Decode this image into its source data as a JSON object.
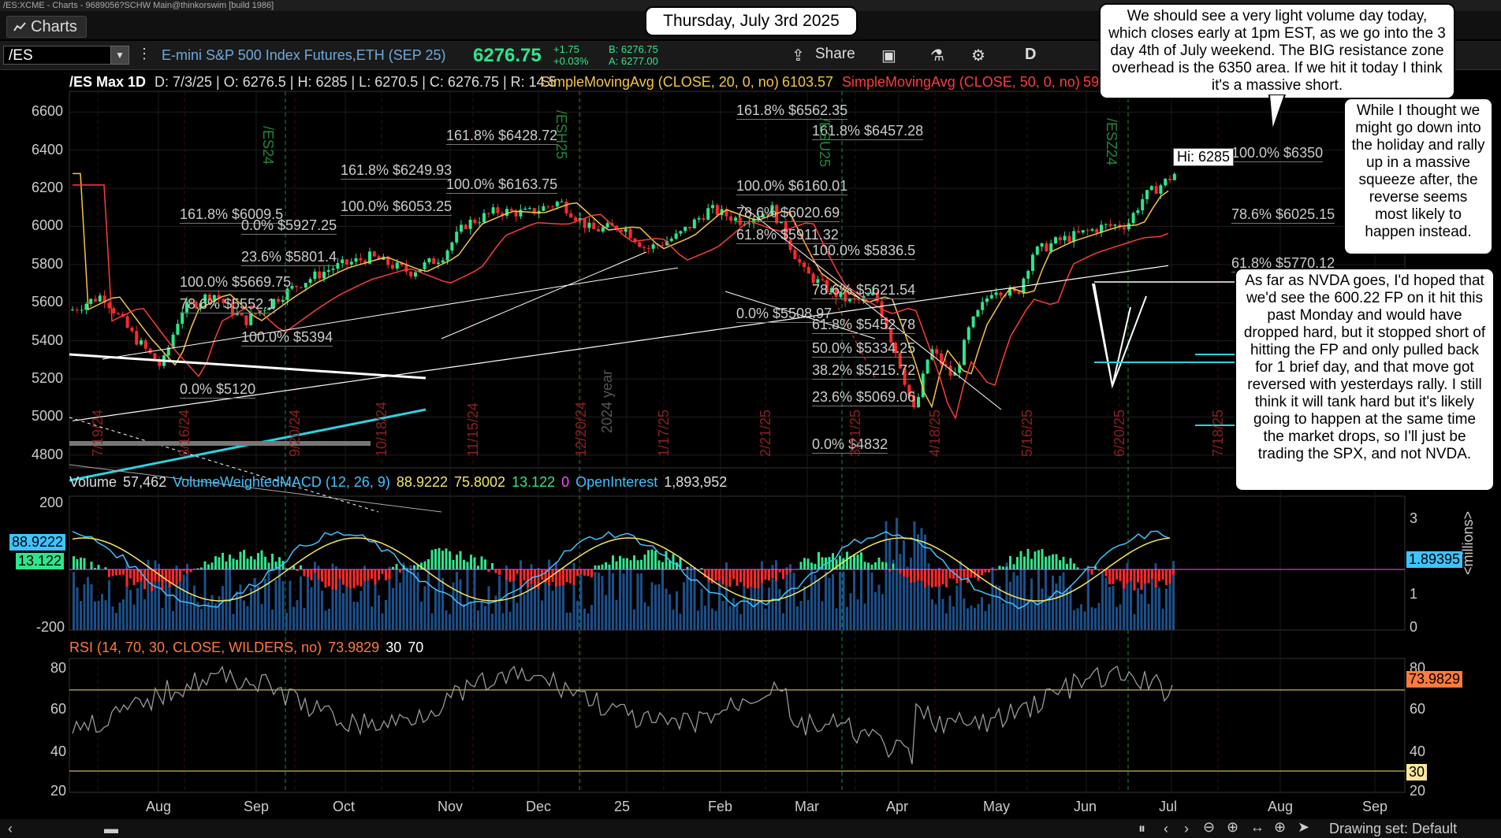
{
  "window_title": "/ES:XCME - Charts - 9689056?SCHW Main@thinkorswim [build 1986]",
  "tab": {
    "label": "Charts"
  },
  "toolbar": {
    "symbol": "/ES",
    "instrument": "E-mini S&P 500 Index Futures,ETH (SEP 25)",
    "last_price": "6276.75",
    "change_abs": "+1.75",
    "change_pct": "+0.03%",
    "bid": "B: 6276.75",
    "ask": "A: 6277.00",
    "share_label": "Share",
    "period_label": "D"
  },
  "header": {
    "symbol_info": "/ES Max 1D",
    "ohlc": [
      "D: 7/3/25",
      "O: 6276.5",
      "H: 6285",
      "L: 6270.5",
      "C: 6276.75",
      "R: 14.5"
    ],
    "sma20_label": "SimpleMovingAvg (CLOSE, 20, 0, no)",
    "sma20_value": "6103.57",
    "sma50_label": "SimpleMovingAvg (CLOSE, 50, 0, no)",
    "sma50_value": "59"
  },
  "y_axis_price": [
    "6600",
    "6400",
    "6200",
    "6000",
    "5800",
    "5600",
    "5400",
    "5200",
    "5000",
    "4800"
  ],
  "x_axis_months": [
    "Aug",
    "Sep",
    "Oct",
    "Nov",
    "Dec",
    "25",
    "Feb",
    "Mar",
    "Apr",
    "May",
    "Jun",
    "Jul",
    "Aug",
    "Sep"
  ],
  "fib_labels": [
    "161.8% $6562.35",
    "161.8% $6457.28",
    "161.8% $6428.72",
    "161.8% $6249.93",
    "100.0% $6163.75",
    "100.0% $6160.01",
    "100.0% $6053.25",
    "161.8% $6009.5",
    "78.6% $6020.69",
    "0.0% $5927.25",
    "61.8% $5911.32",
    "100.0% $5836.5",
    "23.6% $5801.4",
    "100.0% $5669.75",
    "78.6% $5621.54",
    "78.6% $5552.1",
    "0.0% $5508.97",
    "61.8% $5452.78",
    "100.0% $5394",
    "50.0% $5334.25",
    "38.2% $5215.72",
    "0.0% $5120",
    "23.6% $5069.06",
    "0.0% $4832",
    "100.0% $6350",
    "78.6% $6025.15",
    "61.8% $5770.12"
  ],
  "hi_marker": "Hi: 6285",
  "contract_labels": [
    "/ES24",
    "/ESH25",
    "/ESU25",
    "/ESZ24",
    "/ESM25"
  ],
  "date_marks": [
    "7/19/24",
    "8/16/24",
    "9/20/24",
    "10/18/24",
    "11/15/24",
    "12/20/24",
    "1/17/25",
    "2/21/25",
    "3/21/25",
    "4/18/25",
    "5/16/25",
    "6/20/25",
    "7/18/25"
  ],
  "year_label": "2024 year",
  "lower": {
    "volume_label": "Volume",
    "volume_value": "57,462",
    "macd_label": "VolumeWeightedMACD (12, 26, 9)",
    "macd_v1": "88.9222",
    "macd_v2": "75.8002",
    "macd_v3": "13.122",
    "macd_v4": "0",
    "oi_label": "OpenInterest",
    "oi_value": "1,893,952",
    "macd_axis": [
      "200",
      "-200"
    ],
    "vol_axis": [
      "3",
      "1",
      "0"
    ],
    "vol_unit": "<millions>",
    "oi_tag": "1.89395",
    "macd_tag1": "88.9222",
    "macd_tag2": "13.122"
  },
  "rsi": {
    "label": "RSI (14, 70, 30, CLOSE, WILDERS, no)",
    "value": "73.9829",
    "os": "30",
    "ob": "70",
    "axis": [
      "80",
      "60",
      "40",
      "20"
    ],
    "axis_right": [
      "80",
      "60",
      "40",
      "20"
    ]
  },
  "annotations": {
    "date": "Thursday, July 3rd 2025",
    "note1": "We should see a very light volume day today, which closes early at 1pm EST, as we go into the 3 day 4th of July weekend.  The BIG resistance zone overhead is the 6350 area.  If we hit it today I think it's a massive short.",
    "note2": "While I thought we might go down into the holiday and rally up in a massive squeeze after, the reverse seems most likely to happen instead.",
    "note3": "As far as NVDA goes, I'd hoped that we'd see the 600.22 FP on it hit this past Monday and would have dropped hard, but it stopped short of hitting the FP and only pulled back for 1 brief day, and that move got reversed with yesterdays rally.  I still think it will tank hard but it's likely going to happen at the same time the market drops, so I'll just be trading the SPX, and not NVDA."
  },
  "bottom": {
    "drawing_set": "Drawing set: Default"
  },
  "colors": {
    "up": "#2ee68b",
    "down": "#ff2a2a",
    "accent": "#2ee68b"
  }
}
